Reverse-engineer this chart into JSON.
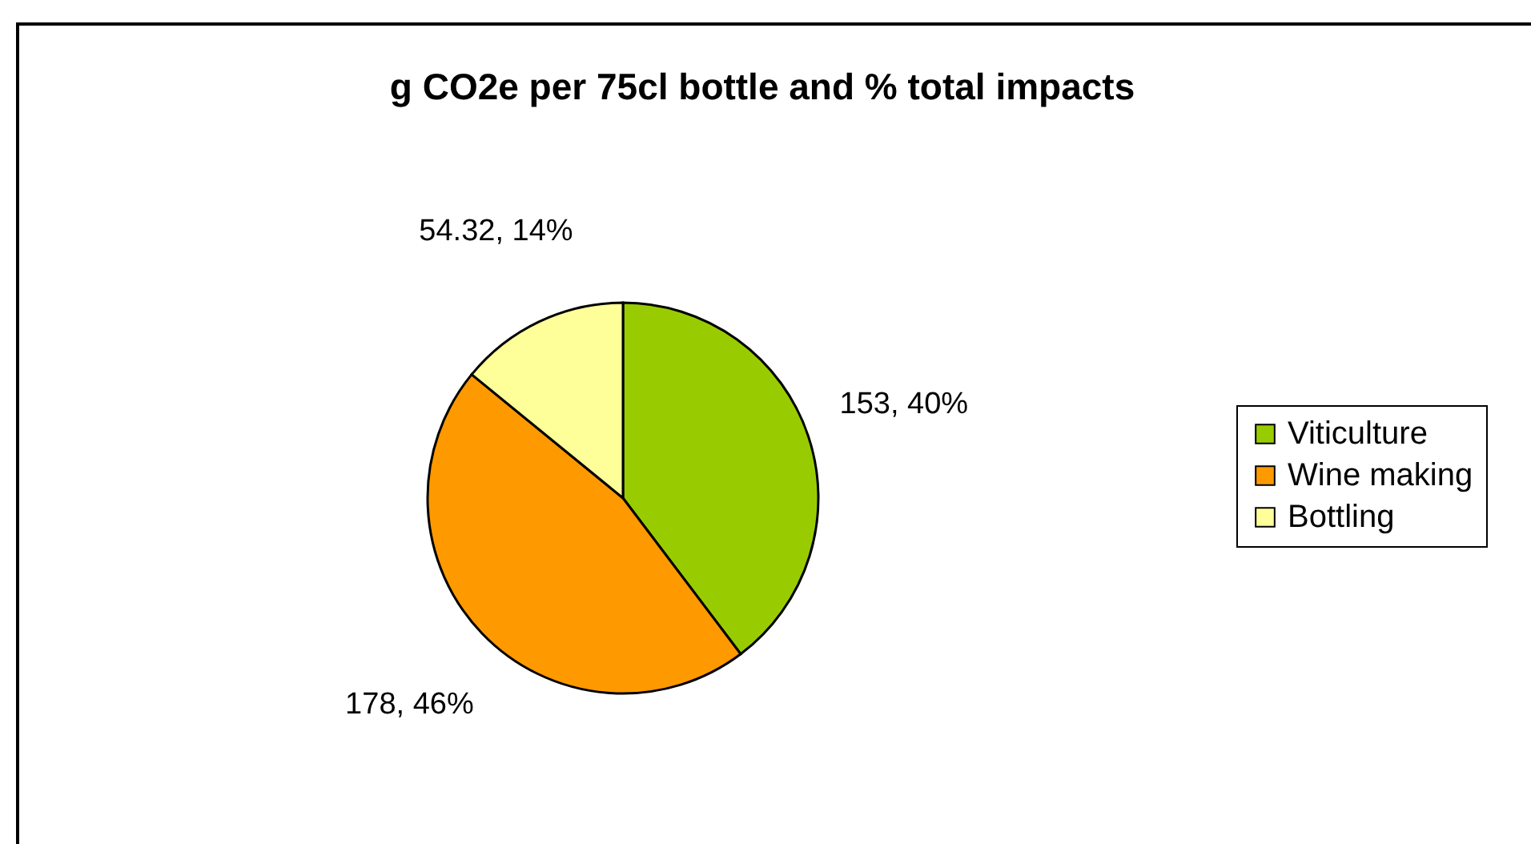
{
  "chart_data": {
    "type": "pie",
    "title": "g CO2e per 75cl bottle and % total impacts",
    "categories": [
      "Viticulture",
      "Wine making",
      "Bottling"
    ],
    "values": [
      153,
      178,
      54.32
    ],
    "colors": [
      "#99cc00",
      "#ff9900",
      "#ffff99"
    ],
    "value_labels": [
      "153, 40%",
      "178, 46%",
      "54.32, 14%"
    ],
    "legend": "right"
  }
}
